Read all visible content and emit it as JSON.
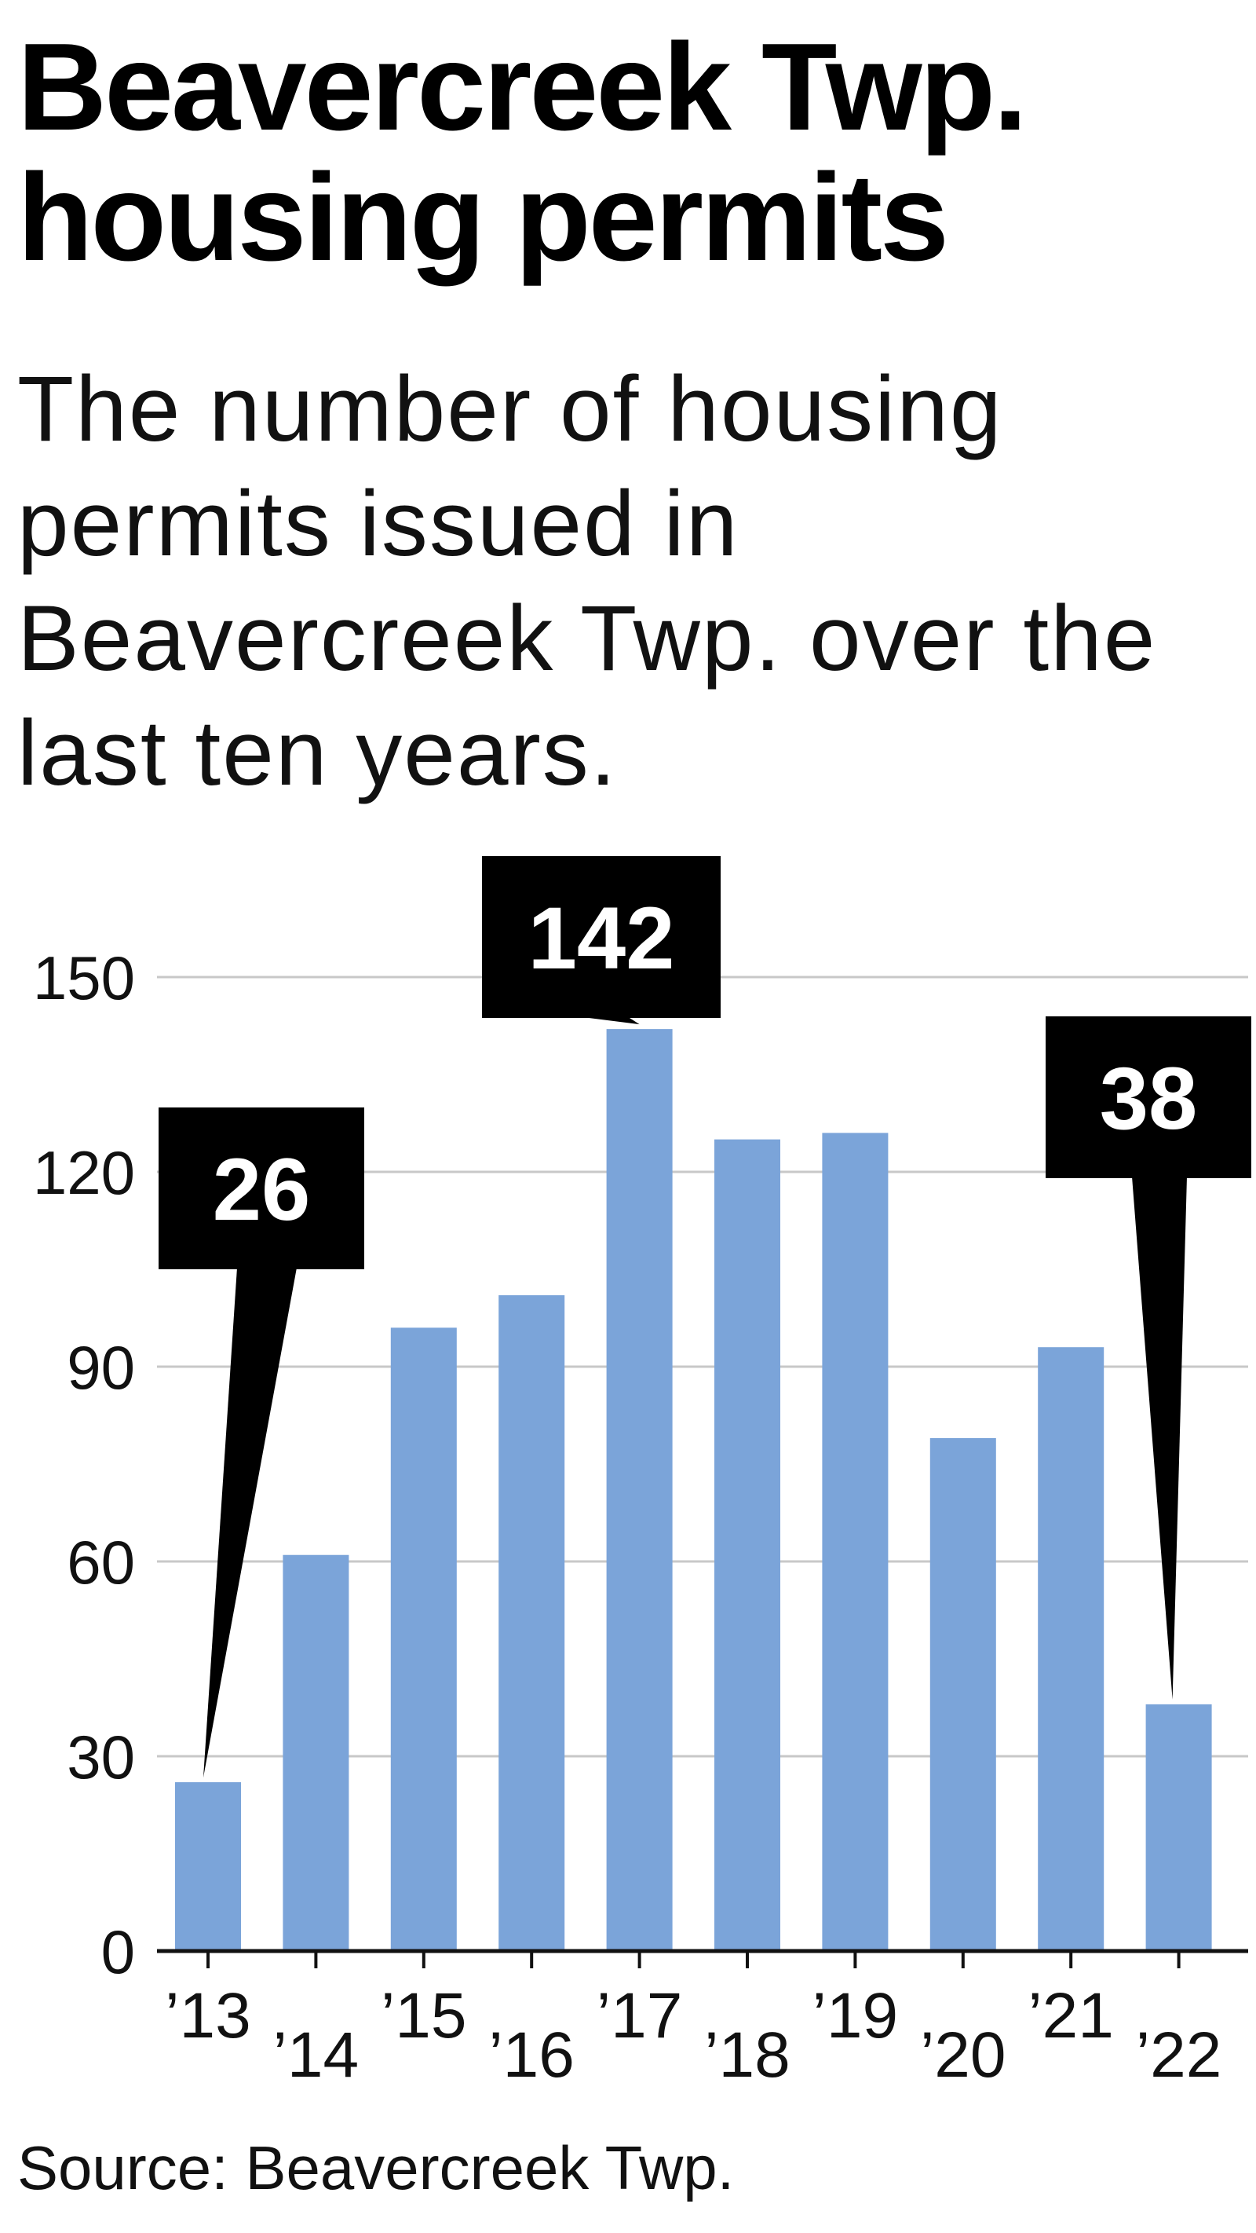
{
  "chart_data": {
    "type": "bar",
    "title": "Beavercreek Twp. housing permits",
    "subtitle": "The number of housing permits issued in Beavercreek Twp. over the last ten years.",
    "source": "Source: Beavercreek Twp.",
    "categories": [
      "’13",
      "’14",
      "’15",
      "’16",
      "’17",
      "’18",
      "’19",
      "’20",
      "’21",
      "’22"
    ],
    "values": [
      26,
      61,
      96,
      101,
      142,
      125,
      126,
      79,
      93,
      38
    ],
    "yticks": [
      0,
      30,
      60,
      90,
      120,
      150
    ],
    "ylim": [
      0,
      150
    ],
    "xlabel": "",
    "ylabel": "",
    "grid": true,
    "bar_color": "#7ba4d9",
    "callout_color": "#000000",
    "callouts": [
      {
        "index": 0,
        "label": "26"
      },
      {
        "index": 4,
        "label": "142"
      },
      {
        "index": 9,
        "label": "38"
      }
    ]
  }
}
